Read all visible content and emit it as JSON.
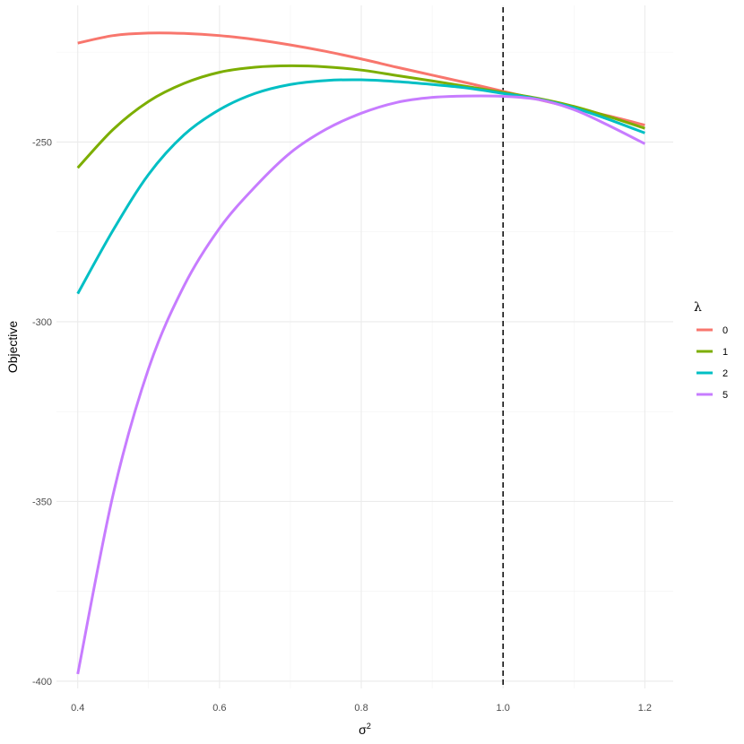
{
  "chart_data": {
    "type": "line",
    "title": "",
    "xlabel": "σ",
    "xlabel_superscript": "2",
    "ylabel": "Objective",
    "xlim": [
      0.37,
      1.24
    ],
    "ylim": [
      -402,
      -212
    ],
    "x_ticks": [
      0.4,
      0.6,
      0.8,
      1.0,
      1.2
    ],
    "x_tick_labels": [
      "0.4",
      "0.6",
      "0.8",
      "1.0",
      "1.2"
    ],
    "x_minor_ticks": [
      0.5,
      0.7,
      0.9,
      1.1
    ],
    "y_ticks": [
      -400,
      -350,
      -300,
      -250
    ],
    "y_tick_labels": [
      "-400",
      "-350",
      "-300",
      "-250"
    ],
    "y_minor_ticks": [
      -375,
      -325,
      -275,
      -225
    ],
    "grid": true,
    "vline": {
      "x": 1.0,
      "style": "dashed",
      "color": "#000000"
    },
    "legend": {
      "title": "λ",
      "position": "right"
    },
    "series": [
      {
        "name": "0",
        "color": "#F8766D",
        "x": [
          0.4,
          0.45,
          0.5,
          0.55,
          0.6,
          0.65,
          0.7,
          0.75,
          0.8,
          0.85,
          0.9,
          0.95,
          1.0,
          1.05,
          1.1,
          1.15,
          1.2
        ],
        "y": [
          -222.5,
          -220.4,
          -219.7,
          -219.8,
          -220.4,
          -221.5,
          -223.0,
          -224.8,
          -226.9,
          -229.2,
          -231.4,
          -233.6,
          -235.9,
          -238.2,
          -240.5,
          -242.8,
          -245.3
        ]
      },
      {
        "name": "1",
        "color": "#7CAE00",
        "x": [
          0.4,
          0.45,
          0.5,
          0.55,
          0.6,
          0.65,
          0.7,
          0.75,
          0.8,
          0.85,
          0.9,
          0.95,
          1.0,
          1.05,
          1.1,
          1.15,
          1.2
        ],
        "y": [
          -257.2,
          -246.5,
          -238.7,
          -233.7,
          -230.6,
          -229.2,
          -228.8,
          -229.1,
          -230.0,
          -231.5,
          -233.0,
          -234.6,
          -236.2,
          -237.9,
          -240.1,
          -243.0,
          -246.2
        ]
      },
      {
        "name": "2",
        "color": "#00BFC4",
        "x": [
          0.4,
          0.45,
          0.5,
          0.55,
          0.6,
          0.65,
          0.7,
          0.75,
          0.8,
          0.85,
          0.9,
          0.95,
          1.0,
          1.05,
          1.1,
          1.15,
          1.2
        ],
        "y": [
          -292.2,
          -274.5,
          -259.0,
          -248.0,
          -241.0,
          -236.5,
          -234.0,
          -232.9,
          -232.7,
          -233.2,
          -234.0,
          -235.0,
          -236.5,
          -238.1,
          -240.5,
          -243.8,
          -247.5
        ]
      },
      {
        "name": "5",
        "color": "#C77CFF",
        "x": [
          0.4,
          0.45,
          0.5,
          0.55,
          0.6,
          0.65,
          0.7,
          0.75,
          0.8,
          0.85,
          0.9,
          0.95,
          1.0,
          1.05,
          1.1,
          1.15,
          1.2
        ],
        "y": [
          -398.0,
          -348.0,
          -313.0,
          -290.0,
          -274.0,
          -262.5,
          -253.0,
          -246.5,
          -242.0,
          -239.0,
          -237.6,
          -237.2,
          -237.3,
          -238.2,
          -241.0,
          -245.5,
          -250.5
        ]
      }
    ]
  }
}
